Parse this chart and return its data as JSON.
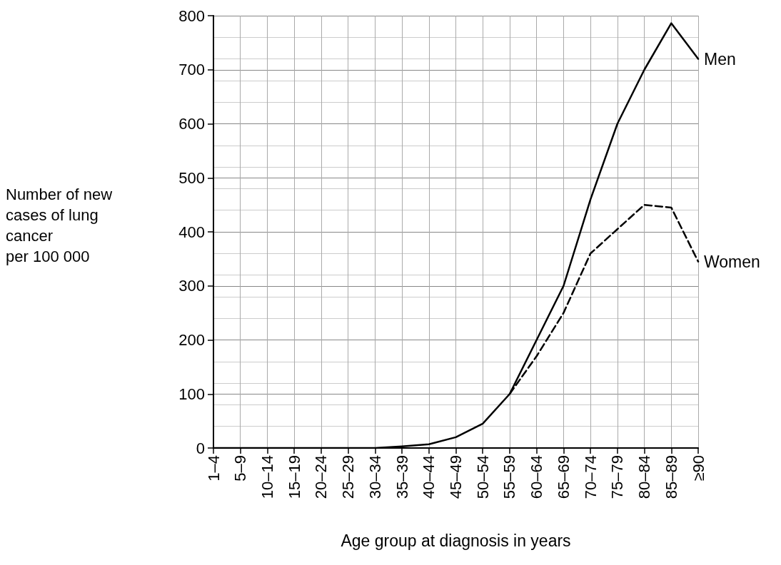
{
  "chart_data": {
    "type": "line",
    "xlabel": "Age group at diagnosis in years",
    "ylabel": "Number of new\ncases of lung\ncancer\nper 100 000",
    "categories": [
      "1–4",
      "5–9",
      "10–14",
      "15–19",
      "20–24",
      "25–29",
      "30–34",
      "35–39",
      "40–44",
      "45–49",
      "50–54",
      "55–59",
      "60–64",
      "65–69",
      "70–74",
      "75–79",
      "80–84",
      "85–89",
      "≥90"
    ],
    "series": [
      {
        "name": "Men",
        "color": "#000000",
        "line_style": "solid",
        "values": [
          0,
          0,
          0,
          0,
          0,
          0,
          0,
          3,
          7,
          20,
          45,
          100,
          200,
          300,
          460,
          600,
          700,
          786,
          720
        ]
      },
      {
        "name": "Women",
        "color": "#000000",
        "line_style": "dashed",
        "values": [
          null,
          null,
          null,
          null,
          null,
          null,
          null,
          null,
          null,
          null,
          null,
          100,
          170,
          250,
          360,
          405,
          450,
          445,
          345
        ]
      }
    ],
    "ylim": [
      0,
      800
    ],
    "yticks": [
      0,
      100,
      200,
      300,
      400,
      500,
      600,
      700,
      800
    ],
    "grid": true,
    "legend": false,
    "marker": "none"
  }
}
